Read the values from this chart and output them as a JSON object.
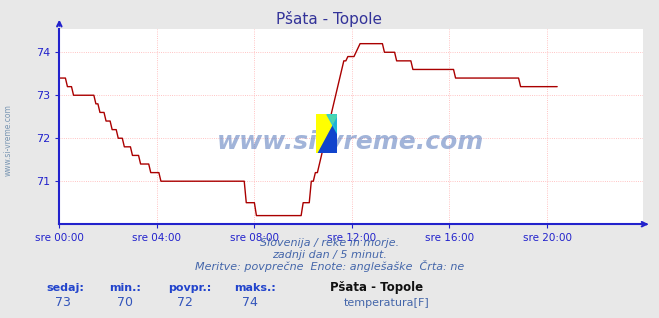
{
  "title": "Pšata - Topole",
  "bg_color": "#e8e8e8",
  "plot_bg_color": "#ffffff",
  "grid_color_h": "#ffb0b0",
  "grid_color_v": "#ffb0b0",
  "line_color": "#aa0000",
  "axis_color": "#2222cc",
  "text_color": "#4466aa",
  "title_color": "#333399",
  "ylim": [
    70.0,
    74.55
  ],
  "yticks": [
    71,
    72,
    73,
    74
  ],
  "xlim": [
    0,
    287
  ],
  "xtick_positions": [
    0,
    48,
    96,
    144,
    192,
    240
  ],
  "xtick_labels": [
    "sre 00:00",
    "sre 04:00",
    "sre 08:00",
    "sre 12:00",
    "sre 16:00",
    "sre 20:00"
  ],
  "subtitle1": "Slovenija / reke in morje.",
  "subtitle2": "zadnji dan / 5 minut.",
  "subtitle3": "Meritve: povprečne  Enote: anglešaške  Črta: ne",
  "legend_title": "Pšata - Topole",
  "legend_label": "temperatura[F]",
  "sedaj_label": "sedaj:",
  "min_label": "min.:",
  "povpr_label": "povpr.:",
  "maks_label": "maks.:",
  "sedaj": 73,
  "min": 70,
  "povpr": 72,
  "maks": 74,
  "watermark": "www.si-vreme.com",
  "left_label": "www.si-vreme.com",
  "temperature_data": [
    73.4,
    73.4,
    73.4,
    73.4,
    73.2,
    73.2,
    73.2,
    73.0,
    73.0,
    73.0,
    73.0,
    73.0,
    73.0,
    73.0,
    73.0,
    73.0,
    73.0,
    73.0,
    72.8,
    72.8,
    72.6,
    72.6,
    72.6,
    72.4,
    72.4,
    72.4,
    72.2,
    72.2,
    72.2,
    72.0,
    72.0,
    72.0,
    71.8,
    71.8,
    71.8,
    71.8,
    71.6,
    71.6,
    71.6,
    71.6,
    71.4,
    71.4,
    71.4,
    71.4,
    71.4,
    71.2,
    71.2,
    71.2,
    71.2,
    71.2,
    71.0,
    71.0,
    71.0,
    71.0,
    71.0,
    71.0,
    71.0,
    71.0,
    71.0,
    71.0,
    71.0,
    71.0,
    71.0,
    71.0,
    71.0,
    71.0,
    71.0,
    71.0,
    71.0,
    71.0,
    71.0,
    71.0,
    71.0,
    71.0,
    71.0,
    71.0,
    71.0,
    71.0,
    71.0,
    71.0,
    71.0,
    71.0,
    71.0,
    71.0,
    71.0,
    71.0,
    71.0,
    71.0,
    71.0,
    71.0,
    71.0,
    71.0,
    70.5,
    70.5,
    70.5,
    70.5,
    70.5,
    70.2,
    70.2,
    70.2,
    70.2,
    70.2,
    70.2,
    70.2,
    70.2,
    70.2,
    70.2,
    70.2,
    70.2,
    70.2,
    70.2,
    70.2,
    70.2,
    70.2,
    70.2,
    70.2,
    70.2,
    70.2,
    70.2,
    70.2,
    70.5,
    70.5,
    70.5,
    70.5,
    71.0,
    71.0,
    71.2,
    71.2,
    71.4,
    71.6,
    71.8,
    72.0,
    72.2,
    72.4,
    72.6,
    72.8,
    73.0,
    73.2,
    73.4,
    73.6,
    73.8,
    73.8,
    73.9,
    73.9,
    73.9,
    73.9,
    74.0,
    74.1,
    74.2,
    74.2,
    74.2,
    74.2,
    74.2,
    74.2,
    74.2,
    74.2,
    74.2,
    74.2,
    74.2,
    74.2,
    74.0,
    74.0,
    74.0,
    74.0,
    74.0,
    74.0,
    73.8,
    73.8,
    73.8,
    73.8,
    73.8,
    73.8,
    73.8,
    73.8,
    73.6,
    73.6,
    73.6,
    73.6,
    73.6,
    73.6,
    73.6,
    73.6,
    73.6,
    73.6,
    73.6,
    73.6,
    73.6,
    73.6,
    73.6,
    73.6,
    73.6,
    73.6,
    73.6,
    73.6,
    73.6,
    73.4,
    73.4,
    73.4,
    73.4,
    73.4,
    73.4,
    73.4,
    73.4,
    73.4,
    73.4,
    73.4,
    73.4,
    73.4,
    73.4,
    73.4,
    73.4,
    73.4,
    73.4,
    73.4,
    73.4,
    73.4,
    73.4,
    73.4,
    73.4,
    73.4,
    73.4,
    73.4,
    73.4,
    73.4,
    73.4,
    73.4,
    73.4,
    73.2,
    73.2,
    73.2,
    73.2,
    73.2,
    73.2,
    73.2,
    73.2,
    73.2,
    73.2,
    73.2,
    73.2,
    73.2,
    73.2,
    73.2,
    73.2,
    73.2,
    73.2,
    73.2
  ]
}
